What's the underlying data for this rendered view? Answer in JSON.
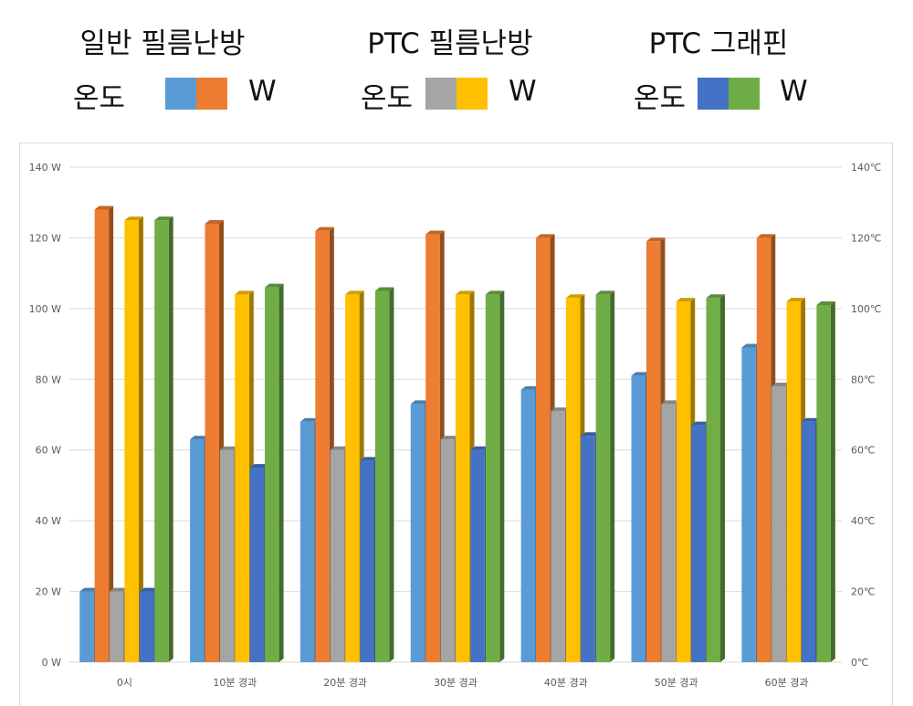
{
  "legend": [
    {
      "title": "일반 필름난방",
      "temp_label": "온도",
      "watt_label": "W",
      "temp_color": "#5b9bd5",
      "watt_color": "#ed7d31"
    },
    {
      "title": "PTC 필름난방",
      "temp_label": "온도",
      "watt_label": "W",
      "temp_color": "#a5a5a5",
      "watt_color": "#ffc000"
    },
    {
      "title": "PTC 그래핀",
      "temp_label": "온도",
      "watt_label": "W",
      "temp_color": "#4472c4",
      "watt_color": "#70ad47"
    }
  ],
  "chart_data": {
    "type": "bar",
    "categories": [
      "0시",
      "10분 경과",
      "20분 경과",
      "30분 경과",
      "40분 경과",
      "50분 경과",
      "60분 경과"
    ],
    "series": [
      {
        "name": "일반 필름난방 온도",
        "axis": "right",
        "color": "#5b9bd5",
        "values": [
          20,
          63,
          68,
          73,
          77,
          81,
          89
        ]
      },
      {
        "name": "일반 필름난방 W",
        "axis": "left",
        "color": "#ed7d31",
        "values": [
          128,
          124,
          122,
          121,
          120,
          119,
          120
        ]
      },
      {
        "name": "PTC 필름난방 온도",
        "axis": "right",
        "color": "#a5a5a5",
        "values": [
          20,
          60,
          60,
          63,
          71,
          73,
          78
        ]
      },
      {
        "name": "PTC 필름난방 W",
        "axis": "left",
        "color": "#ffc000",
        "values": [
          125,
          104,
          104,
          104,
          103,
          102,
          102
        ]
      },
      {
        "name": "PTC 그래핀 온도",
        "axis": "right",
        "color": "#4472c4",
        "values": [
          20,
          55,
          57,
          60,
          64,
          67,
          68
        ]
      },
      {
        "name": "PTC 그래핀 W",
        "axis": "left",
        "color": "#70ad47",
        "values": [
          125,
          106,
          105,
          104,
          104,
          103,
          101
        ]
      }
    ],
    "y_left": {
      "min": 0,
      "max": 140,
      "ticks": [
        "0 W",
        "20 W",
        "40 W",
        "60 W",
        "80 W",
        "100 W",
        "120 W",
        "140 W"
      ]
    },
    "y_right": {
      "min": 0,
      "max": 140,
      "ticks": [
        "0℃",
        "20℃",
        "40℃",
        "60℃",
        "80℃",
        "100℃",
        "120℃",
        "140℃"
      ]
    },
    "grid": true,
    "legend_position": "top"
  }
}
